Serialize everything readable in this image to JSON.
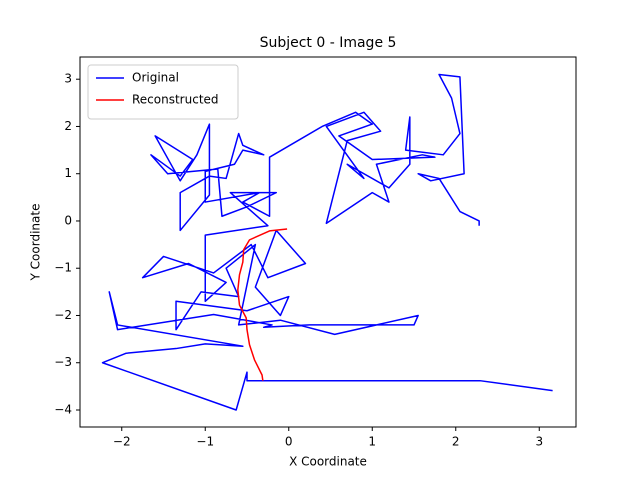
{
  "chart_data": {
    "type": "line",
    "title": "Subject 0 - Image 5",
    "x_label": "X Coordinate",
    "y_label": "Y Coordinate",
    "legend": "upper left",
    "grid": false,
    "xlim": [
      -2.5,
      3.44
    ],
    "ylim": [
      -4.36,
      3.47
    ],
    "xticks": [
      {
        "value": -2,
        "label": "−2"
      },
      {
        "value": -1,
        "label": "−1"
      },
      0,
      1,
      2,
      3
    ],
    "yticks": [
      {
        "value": -4,
        "label": "−4"
      },
      {
        "value": -3,
        "label": "−3"
      },
      {
        "value": -2,
        "label": "−2"
      },
      {
        "value": -1,
        "label": "−1"
      },
      0,
      1,
      2,
      3
    ],
    "series": [
      {
        "name": "Original",
        "color": "#0000ff",
        "x": [
          2.28,
          2.28,
          2.05,
          1.8,
          1.55,
          1.7,
          2.1,
          2.05,
          1.8,
          1.95,
          2.05,
          1.85,
          1.4,
          1.45,
          1.45,
          1.2,
          0.7,
          0.9,
          0.45,
          0.9,
          1.1,
          0.7,
          0.6,
          0.45,
          1.0,
          1.2,
          1.05,
          1.6,
          1.75,
          1.0,
          0.6,
          1.0,
          0.8,
          0.4,
          -0.23,
          -0.23,
          -0.55,
          -0.35,
          -1.0,
          -1.0,
          -0.65,
          -0.55,
          -0.3,
          -0.55,
          -0.6,
          -0.75,
          -0.95,
          -1.3,
          -1.3,
          -0.95,
          -0.95,
          -1.1,
          -1.3,
          -1.6,
          -1.15,
          -1.3,
          -1.65,
          -1.45,
          -0.85,
          -0.8,
          -0.5,
          -0.15,
          -0.7,
          -0.25,
          -1.0,
          -1.0,
          -0.75,
          -1.2,
          -1.75,
          -1.5,
          -0.9,
          -0.45,
          -0.25,
          0.2,
          -0.15,
          -0.4,
          -0.1,
          0.0,
          -0.5,
          -1.35,
          -1.35,
          -1.05,
          -0.6,
          -0.75,
          -0.4,
          -0.6,
          -0.1,
          0.55,
          1.55,
          1.5,
          0.25,
          -0.3,
          -0.2,
          -0.9,
          -2.05,
          -2.15,
          -2.05,
          -0.55,
          -1.0,
          -1.35,
          -1.95,
          -2.23,
          -0.63,
          -0.5,
          -0.5,
          2.29,
          3.16
        ],
        "values": [
          -0.1,
          0.0,
          0.2,
          0.9,
          1.0,
          0.85,
          1.0,
          3.05,
          3.1,
          2.6,
          1.85,
          1.4,
          1.5,
          2.2,
          1.2,
          0.7,
          1.2,
          0.9,
          2.0,
          2.3,
          1.9,
          1.7,
          1.0,
          -0.05,
          0.6,
          0.4,
          1.2,
          1.4,
          1.35,
          1.3,
          1.8,
          2.05,
          2.3,
          2.0,
          1.35,
          0.1,
          0.4,
          0.6,
          0.4,
          1.05,
          1.2,
          1.5,
          1.4,
          1.6,
          1.85,
          0.9,
          0.95,
          0.6,
          -0.2,
          0.55,
          2.05,
          1.4,
          0.85,
          1.8,
          1.3,
          0.95,
          1.4,
          1.0,
          1.1,
          0.1,
          0.3,
          0.6,
          0.6,
          -0.1,
          -0.3,
          -1.7,
          -1.3,
          -0.9,
          -1.2,
          -0.75,
          -1.1,
          -0.5,
          -1.2,
          -0.9,
          -0.2,
          -1.4,
          -2.0,
          -1.6,
          -1.9,
          -1.7,
          -2.3,
          -1.5,
          -1.6,
          -1.0,
          -0.5,
          -2.2,
          -2.1,
          -2.4,
          -2.0,
          -2.2,
          -2.2,
          -2.25,
          -2.2,
          -1.98,
          -2.3,
          -1.5,
          -2.2,
          -2.65,
          -2.6,
          -2.7,
          -2.8,
          -3.0,
          -4.0,
          -3.2,
          -3.38,
          -3.38,
          -3.59
        ]
      },
      {
        "name": "Reconstructed",
        "color": "#ff0000",
        "x": [
          -0.02,
          -0.23,
          -0.47,
          -0.54,
          -0.55,
          -0.59,
          -0.61,
          -0.59,
          -0.51,
          -0.5,
          -0.47,
          -0.41,
          -0.32,
          -0.31
        ],
        "values": [
          -0.17,
          -0.21,
          -0.4,
          -0.61,
          -0.87,
          -1.14,
          -1.46,
          -1.78,
          -2.05,
          -2.3,
          -2.62,
          -2.94,
          -3.26,
          -3.38
        ]
      }
    ]
  }
}
